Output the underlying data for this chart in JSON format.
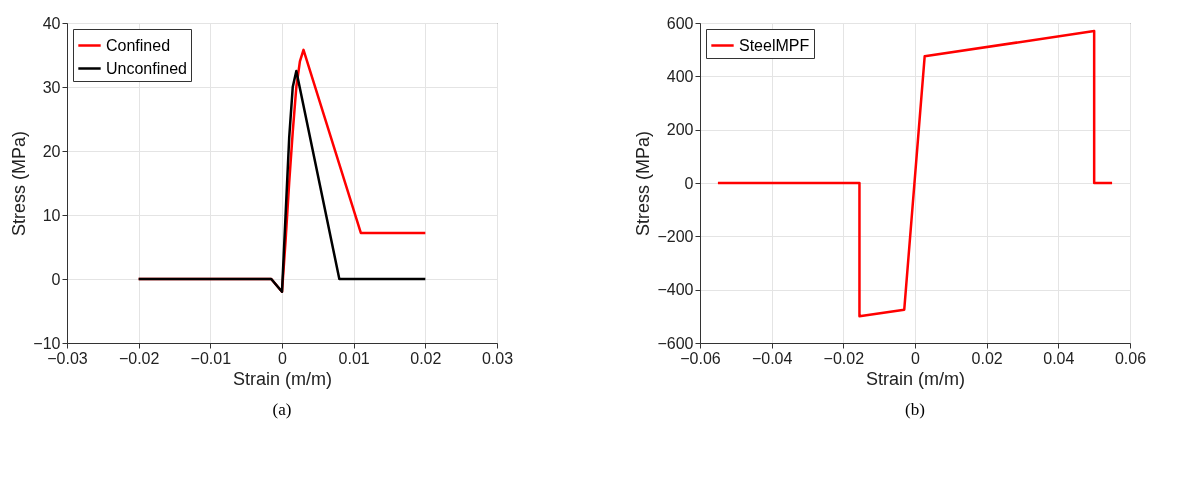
{
  "chart_data": [
    {
      "type": "line",
      "xlabel": "Strain (m/m)",
      "ylabel": "Stress (MPa)",
      "xlim": [
        -0.03,
        0.03
      ],
      "xticks": [
        -0.03,
        -0.02,
        -0.01,
        0,
        0.01,
        0.02,
        0.03
      ],
      "ylim": [
        -10,
        40
      ],
      "yticks": [
        -10,
        0,
        10,
        20,
        30,
        40
      ],
      "grid": true,
      "legend": "top left",
      "annotations": [
        "(a)"
      ],
      "series": [
        {
          "name": "Confined",
          "color": "#ff0000",
          "x": [
            -0.02,
            -0.0015,
            0,
            0.0005,
            0.001,
            0.0015,
            0.002,
            0.0025,
            0.003,
            0.011,
            0.02
          ],
          "values": [
            0,
            0,
            -2,
            6,
            15,
            23,
            30,
            34,
            35.8,
            7.2,
            7.2
          ]
        },
        {
          "name": "Unconfined",
          "color": "#000000",
          "x": [
            -0.02,
            -0.0015,
            0,
            0.0005,
            0.001,
            0.0015,
            0.002,
            0.008,
            0.02
          ],
          "values": [
            0,
            0,
            -2,
            10,
            22,
            30,
            32.5,
            0,
            0
          ]
        }
      ]
    },
    {
      "type": "line",
      "xlabel": "Strain (m/m)",
      "ylabel": "Stress (MPa)",
      "xlim": [
        -0.06,
        0.06
      ],
      "xticks": [
        -0.06,
        -0.04,
        -0.02,
        0,
        0.02,
        0.04,
        0.06
      ],
      "ylim": [
        -600,
        600
      ],
      "yticks": [
        -600,
        -400,
        -200,
        0,
        200,
        400,
        600
      ],
      "grid": true,
      "legend": "top left",
      "annotations": [
        "(b)"
      ],
      "series": [
        {
          "name": "SteelMPF",
          "color": "#ff0000",
          "x": [
            -0.055,
            -0.0155,
            -0.0155,
            -0.003,
            0.0027,
            0.05,
            0.05,
            0.055
          ],
          "values": [
            0,
            0,
            -500,
            -475,
            475,
            570,
            0,
            0
          ]
        }
      ]
    }
  ]
}
